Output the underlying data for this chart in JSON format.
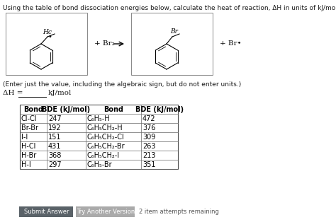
{
  "title_line1": "Using the table of bond dissociation energies below, calculate the heat of reaction, ΔH in units of kJ/mol for the following reaction:",
  "subtitle": "(Enter just the value, including the algebraic sign, but do not enter units.)",
  "dH_label": "ΔH =",
  "dH_units": "kJ/mol",
  "table_headers": [
    "Bond",
    "BDE (kJ/mol)",
    "Bond",
    "BDE (kJ/mol)"
  ],
  "table_left": [
    [
      "Cl-Cl",
      "247"
    ],
    [
      "Br-Br",
      "192"
    ],
    [
      "I-I",
      "151"
    ],
    [
      "H-Cl",
      "431"
    ],
    [
      "H-Br",
      "368"
    ],
    [
      "H-I",
      "297"
    ]
  ],
  "table_right": [
    [
      "C₆H₅-H",
      "472"
    ],
    [
      "C₆H₅CH₂-H",
      "376"
    ],
    [
      "C₆H₅CH₂-Cl",
      "309"
    ],
    [
      "C₆H₅CH₂-Br",
      "263"
    ],
    [
      "C₆H₅CH₂-I",
      "213"
    ],
    [
      "C₆H₅-Br",
      "351"
    ]
  ],
  "btn1_text": "Submit Answer",
  "btn2_text": "Try Another Version",
  "btn3_text": "2 item attempts remaining",
  "bg_color": "#ffffff",
  "btn1_bg": "#5a6268",
  "btn2_bg": "#aaaaaa",
  "text_color": "#1a1a1a",
  "font_size_title": 6.5,
  "font_size_body": 7.5,
  "font_size_table": 7.0
}
